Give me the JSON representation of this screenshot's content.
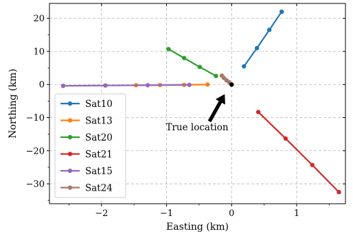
{
  "chart_data": {
    "type": "line",
    "xlabel": "Easting (km)",
    "ylabel": "Northing (km)",
    "xlim": [
      -2.8,
      1.75
    ],
    "ylim": [
      -36,
      24.5
    ],
    "xticks": [
      -2,
      -1,
      0,
      1
    ],
    "xtick_labels": [
      "−2",
      "−1",
      "0",
      "1"
    ],
    "yticks": [
      -30,
      -20,
      -10,
      0,
      10,
      20
    ],
    "ytick_labels": [
      "−30",
      "−20",
      "−10",
      "0",
      "10",
      "20"
    ],
    "grid": true,
    "legend_placement": "lower-left",
    "series": [
      {
        "name": "Sat10",
        "color": "#1f77b4",
        "x": [
          0.19,
          0.39,
          0.58,
          0.77
        ],
        "y": [
          5.5,
          11.0,
          16.5,
          22.0
        ]
      },
      {
        "name": "Sat13",
        "color": "#ff7f0e",
        "x": [
          -0.37,
          -0.73,
          -1.1,
          -1.47
        ],
        "y": [
          0.0,
          -0.1,
          -0.15,
          -0.2
        ]
      },
      {
        "name": "Sat20",
        "color": "#2ca02c",
        "x": [
          -0.24,
          -0.49,
          -0.73,
          -0.97
        ],
        "y": [
          2.6,
          5.3,
          8.0,
          10.7
        ]
      },
      {
        "name": "Sat21",
        "color": "#d62728",
        "x": [
          0.41,
          0.83,
          1.24,
          1.65
        ],
        "y": [
          -8.3,
          -16.3,
          -24.3,
          -32.5
        ]
      },
      {
        "name": "Sat15",
        "color": "#9467bd",
        "x": [
          -0.65,
          -1.29,
          -1.94,
          -2.59
        ],
        "y": [
          -0.1,
          -0.2,
          -0.3,
          -0.4
        ]
      },
      {
        "name": "Sat24",
        "color": "#a5796b",
        "x": [
          -0.04,
          -0.08,
          -0.12,
          -0.15
        ],
        "y": [
          0.7,
          1.3,
          2.0,
          2.7
        ]
      }
    ],
    "true_location": {
      "x": 0,
      "y": 0,
      "color": "#000000"
    },
    "annotations": [
      {
        "text": "True location",
        "points_to": {
          "x": 0,
          "y": 0
        }
      }
    ]
  }
}
